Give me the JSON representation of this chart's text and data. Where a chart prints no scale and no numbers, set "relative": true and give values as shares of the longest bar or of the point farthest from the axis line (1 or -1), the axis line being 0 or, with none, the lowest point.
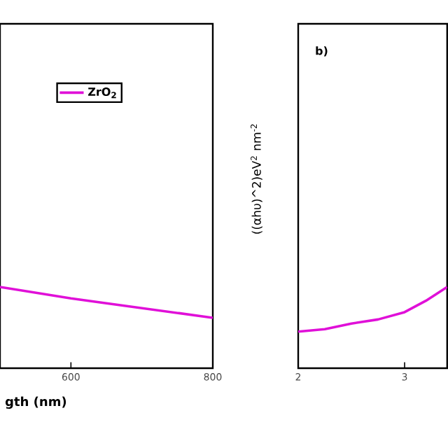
{
  "chart_data": [
    {
      "type": "line",
      "xlabel": "gth (nm)",
      "x": [
        500,
        550,
        600,
        650,
        700,
        750,
        800
      ],
      "relative": true,
      "xlim": [
        500,
        800
      ],
      "xticks": [
        600,
        800
      ],
      "legend": "top",
      "series": [
        {
          "name": "ZrO$_{2}$",
          "color": "#e010d8",
          "values": [
            1,
            0.93,
            0.86,
            0.8,
            0.74,
            0.68,
            0.62
          ]
        }
      ]
    },
    {
      "type": "line",
      "ylabel": "((αhυ)^2)eV$^{2}$ nm$^{-2}$",
      "annotations": [
        "b)"
      ],
      "x": [
        2.0,
        2.25,
        2.5,
        2.75,
        3.0,
        3.2,
        3.4
      ],
      "relative": true,
      "xlim": [
        2,
        3.4
      ],
      "xticks": [
        2,
        3
      ],
      "series": [
        {
          "color": "#e010d8",
          "values": [
            0.45,
            0.48,
            0.55,
            0.6,
            0.69,
            0.83,
            1.0
          ]
        }
      ]
    }
  ]
}
